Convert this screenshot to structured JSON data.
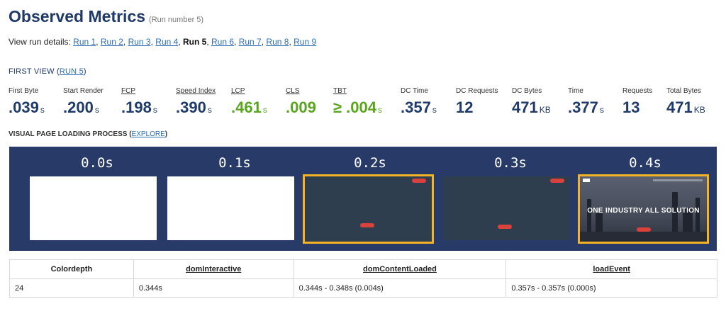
{
  "header": {
    "title": "Observed Metrics",
    "subtitle": "(Run number 5)"
  },
  "runs": {
    "label": "View run details:",
    "items": [
      "Run 1",
      "Run 2",
      "Run 3",
      "Run 4",
      "Run 5",
      "Run 6",
      "Run 7",
      "Run 8",
      "Run 9"
    ],
    "current": "Run 5"
  },
  "first_view": {
    "label": "FIRST VIEW (",
    "link": "RUN 5",
    "close": ")"
  },
  "metrics": [
    {
      "label": "First Byte",
      "value": ".039",
      "unit": "s"
    },
    {
      "label": "Start Render",
      "value": ".200",
      "unit": "s"
    },
    {
      "label": "FCP",
      "value": ".198",
      "unit": "s"
    },
    {
      "label": "Speed Index",
      "value": ".390",
      "unit": "s"
    },
    {
      "label": "LCP",
      "value": ".461",
      "unit": "s"
    },
    {
      "label": "CLS",
      "value": ".009",
      "unit": ""
    },
    {
      "label": "TBT",
      "value": "≥ .004",
      "unit": "s"
    },
    {
      "label": "DC Time",
      "value": ".357",
      "unit": "s"
    },
    {
      "label": "DC Requests",
      "value": "12",
      "unit": ""
    },
    {
      "label": "DC Bytes",
      "value": "471",
      "unit": "KB"
    },
    {
      "label": "Time",
      "value": ".377",
      "unit": "s"
    },
    {
      "label": "Requests",
      "value": "13",
      "unit": ""
    },
    {
      "label": "Total Bytes",
      "value": "471",
      "unit": "KB"
    }
  ],
  "colors": {
    "good": "#5aa51e",
    "metric": "#1f3a68",
    "filmstrip_bg": "#273a68",
    "highlight": "#f3b325"
  },
  "visual": {
    "label": "VISUAL PAGE LOADING PROCESS",
    "link": "EXPLORE"
  },
  "filmstrip": [
    {
      "time": "0.0s",
      "state": "blank"
    },
    {
      "time": "0.1s",
      "state": "blank"
    },
    {
      "time": "0.2s",
      "state": "dark-changed"
    },
    {
      "time": "0.3s",
      "state": "dark"
    },
    {
      "time": "0.4s",
      "state": "image-changed"
    }
  ],
  "hero_text": "ONE INDUSTRY ALL SOLUTION",
  "dom_table": {
    "headers": [
      "Colordepth",
      "domInteractive",
      "domContentLoaded",
      "loadEvent"
    ],
    "row": [
      "24",
      "0.344s",
      "0.344s - 0.348s (0.004s)",
      "0.357s - 0.357s (0.000s)"
    ]
  }
}
